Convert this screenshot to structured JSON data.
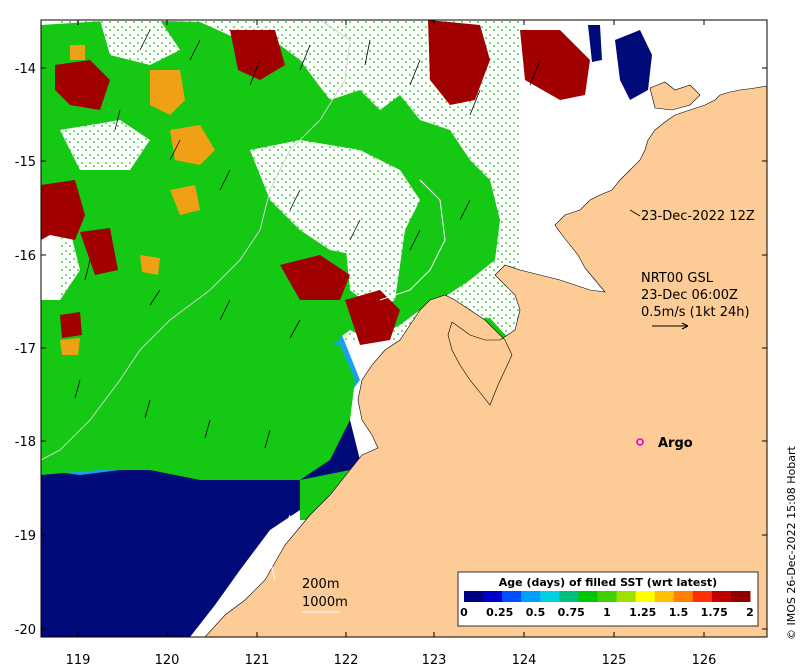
{
  "title_stamp": "23-Dec-2022 12Z",
  "current_info": {
    "line1": "NRT00 GSL",
    "line2": "23-Dec 06:00Z",
    "line3": "0.5m/s (1kt 24h)"
  },
  "argo_label": "Argo",
  "contours": {
    "label_200": "200m",
    "label_1000": "1000m"
  },
  "colorbar": {
    "title": "Age (days) of filled SST (wrt latest)",
    "ticks": [
      "0",
      "0.25",
      "0.5",
      "0.75",
      "1",
      "1.25",
      "1.5",
      "1.75",
      "2"
    ],
    "colors": [
      "#000080",
      "#0000c8",
      "#0050ff",
      "#00a0ff",
      "#00d0e0",
      "#00c080",
      "#00c800",
      "#40d000",
      "#a0e000",
      "#ffff00",
      "#ffc000",
      "#ff8000",
      "#ff3000",
      "#c00000",
      "#900000"
    ]
  },
  "axes": {
    "x_ticks": [
      "119",
      "120",
      "121",
      "122",
      "123",
      "124",
      "125",
      "126"
    ],
    "y_ticks": [
      "-14",
      "-15",
      "-16",
      "-17",
      "-18",
      "-19",
      "-20"
    ]
  },
  "credit": "© IMOS 26-Dec-2022 15:08 Hobart",
  "colors": {
    "land": "#fccb96",
    "age_dark_blue": "#000a78",
    "age_light_blue": "#19a0f0",
    "age_blue": "#1460e6",
    "age_green": "#14c814",
    "age_orange": "#f0a014",
    "age_dark_red": "#a00000",
    "argo_marker": "#e000e0"
  }
}
